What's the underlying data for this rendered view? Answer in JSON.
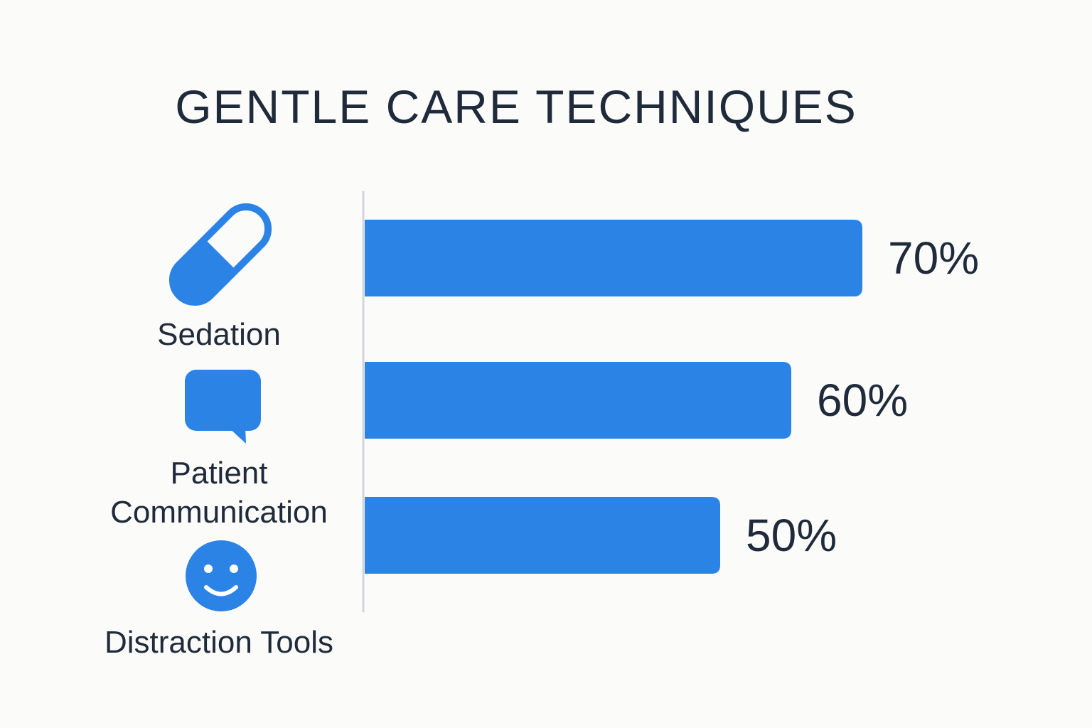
{
  "chart_data": {
    "type": "bar",
    "orientation": "horizontal",
    "title": "GENTLE CARE TECHNIQUES",
    "categories": [
      {
        "label_lines": [
          "Sedation"
        ],
        "icon": "pill-capsule-icon"
      },
      {
        "label_lines": [
          "Patient",
          "Communication"
        ],
        "icon": "speech-bubble-icon"
      },
      {
        "label_lines": [
          "Distraction Tools"
        ],
        "icon": "smiley-face-icon"
      }
    ],
    "values": [
      70,
      60,
      50
    ],
    "value_labels": [
      "70%",
      "60%",
      "50%"
    ],
    "unit": "%",
    "xlim": [
      0,
      100
    ],
    "grid": false,
    "legend": "none"
  },
  "colors": {
    "bar": "#2c83e6",
    "icon": "#2c83e6",
    "text": "#1f2a3a",
    "axis": "#d2d6dc",
    "background": "#fbfbf9"
  }
}
